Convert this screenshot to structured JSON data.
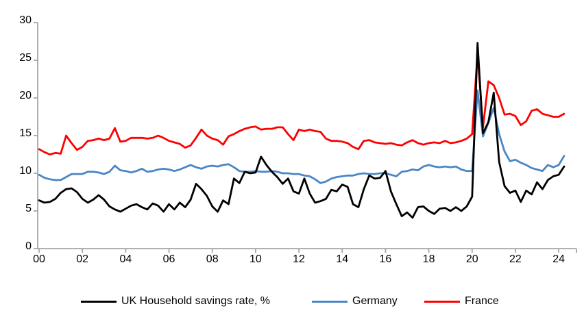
{
  "chart_data": {
    "type": "line",
    "title": "",
    "xlabel": "",
    "ylabel": "",
    "x_start": "2000Q1",
    "x_end": "2024Q2",
    "frequency": "quarterly",
    "grid": false,
    "legend_position": "bottom",
    "axis_color": "#a6a6a6",
    "tick_label_color": "#000000",
    "ylim": [
      0,
      30
    ],
    "y_ticks": [
      "0",
      "5",
      "10",
      "15",
      "20",
      "25",
      "30"
    ],
    "x_tick_labels": [
      "00",
      "02",
      "04",
      "06",
      "08",
      "10",
      "12",
      "14",
      "16",
      "18",
      "20",
      "22",
      "24"
    ],
    "series": [
      {
        "key": "uk",
        "name": "UK Household savings rate, %",
        "color": "#000000",
        "values": [
          6.4,
          6.1,
          6.2,
          6.6,
          7.4,
          7.9,
          8.0,
          7.5,
          6.6,
          6.1,
          6.5,
          7.1,
          6.5,
          5.6,
          5.2,
          4.9,
          5.3,
          5.7,
          5.9,
          5.5,
          5.2,
          6.0,
          5.7,
          4.9,
          5.9,
          5.2,
          6.1,
          5.5,
          6.5,
          8.6,
          7.9,
          7.0,
          5.6,
          4.9,
          6.4,
          5.9,
          9.3,
          8.7,
          10.2,
          10.0,
          10.1,
          12.2,
          11.1,
          10.2,
          9.5,
          8.6,
          9.3,
          7.6,
          7.3,
          9.3,
          7.3,
          6.1,
          6.3,
          6.6,
          7.8,
          7.6,
          8.5,
          8.2,
          5.9,
          5.5,
          7.9,
          9.7,
          9.3,
          9.4,
          10.3,
          7.6,
          5.9,
          4.3,
          4.8,
          4.1,
          5.5,
          5.6,
          5.0,
          4.6,
          5.3,
          5.4,
          5.0,
          5.5,
          5.0,
          5.6,
          6.9,
          27.3,
          15.3,
          16.8,
          20.7,
          11.5,
          8.3,
          7.4,
          7.7,
          6.2,
          7.7,
          7.2,
          8.8,
          7.9,
          9.1,
          9.6,
          9.8,
          10.9
        ]
      },
      {
        "key": "germany",
        "name": "Germany",
        "color": "#4a86c6",
        "values": [
          9.8,
          9.4,
          9.2,
          9.1,
          9.1,
          9.5,
          9.9,
          9.9,
          9.9,
          10.2,
          10.2,
          10.1,
          9.9,
          10.2,
          11.0,
          10.4,
          10.3,
          10.1,
          10.3,
          10.6,
          10.2,
          10.3,
          10.5,
          10.6,
          10.5,
          10.3,
          10.5,
          10.8,
          11.1,
          10.8,
          10.6,
          10.9,
          11.0,
          10.9,
          11.1,
          11.2,
          10.8,
          10.3,
          10.2,
          10.2,
          10.3,
          10.2,
          10.2,
          10.3,
          10.2,
          10.0,
          10.0,
          9.9,
          9.9,
          9.7,
          9.6,
          9.2,
          8.7,
          8.9,
          9.3,
          9.5,
          9.6,
          9.7,
          9.7,
          9.9,
          10.0,
          9.9,
          9.9,
          10.0,
          10.0,
          9.8,
          9.6,
          10.2,
          10.3,
          10.5,
          10.4,
          10.9,
          11.1,
          10.9,
          10.8,
          10.9,
          10.8,
          10.9,
          10.5,
          10.3,
          10.3,
          21.0,
          14.9,
          16.7,
          18.7,
          15.2,
          12.9,
          11.6,
          11.8,
          11.4,
          11.1,
          10.7,
          10.5,
          10.3,
          11.1,
          10.8,
          11.1,
          12.3
        ]
      },
      {
        "key": "france",
        "name": "France",
        "color": "#ff0000",
        "values": [
          13.2,
          12.8,
          12.5,
          12.7,
          12.6,
          15.0,
          14.0,
          13.1,
          13.5,
          14.3,
          14.4,
          14.6,
          14.4,
          14.6,
          16.0,
          14.2,
          14.3,
          14.7,
          14.7,
          14.7,
          14.6,
          14.7,
          15.0,
          14.7,
          14.3,
          14.1,
          13.9,
          13.4,
          13.7,
          14.7,
          15.8,
          15.0,
          14.6,
          14.4,
          13.8,
          14.9,
          15.2,
          15.6,
          15.9,
          16.1,
          16.2,
          15.8,
          15.9,
          15.9,
          16.1,
          16.1,
          15.2,
          14.4,
          15.8,
          15.6,
          15.8,
          15.6,
          15.5,
          14.6,
          14.3,
          14.3,
          14.2,
          14.0,
          13.5,
          13.2,
          14.3,
          14.4,
          14.1,
          14.0,
          13.9,
          14.0,
          13.8,
          13.7,
          14.1,
          14.4,
          14.0,
          13.8,
          14.0,
          14.1,
          14.0,
          14.3,
          14.0,
          14.1,
          14.3,
          14.6,
          15.2,
          26.0,
          16.1,
          22.2,
          21.7,
          20.0,
          17.8,
          17.9,
          17.6,
          16.4,
          16.9,
          18.3,
          18.5,
          17.9,
          17.7,
          17.5,
          17.5,
          17.9
        ]
      }
    ]
  }
}
